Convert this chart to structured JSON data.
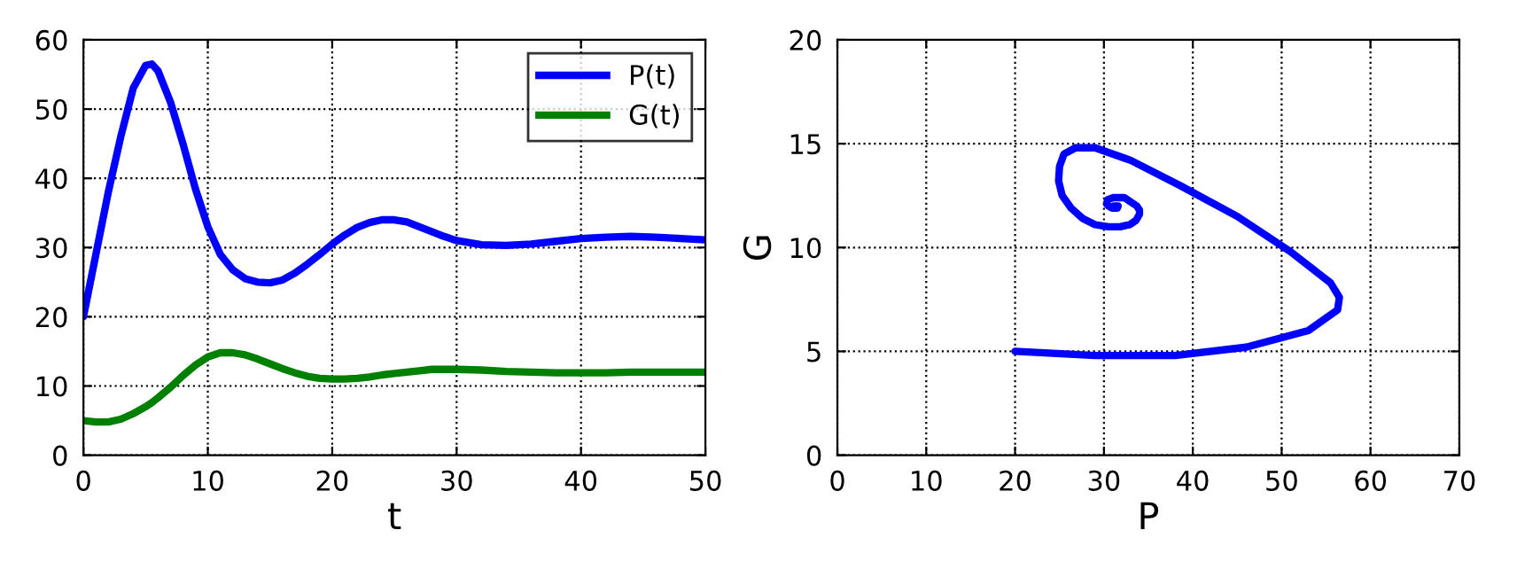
{
  "chart_data": [
    {
      "type": "line",
      "xlabel": "t",
      "x": [
        0,
        1,
        2,
        3,
        4,
        5,
        5.5,
        6,
        7,
        8,
        9,
        10,
        11,
        12,
        13,
        14,
        15,
        16,
        17,
        18,
        19,
        20,
        21,
        22,
        23,
        24,
        25,
        26,
        27,
        28,
        29,
        30,
        32,
        34,
        36,
        38,
        40,
        42,
        44,
        46,
        48,
        50
      ],
      "series": [
        {
          "name": "P(t)",
          "color": "#0000ff",
          "values": [
            20,
            29,
            38,
            46,
            53,
            56.3,
            56.5,
            55.5,
            51,
            45,
            38.5,
            33,
            29,
            26.8,
            25.5,
            25,
            24.9,
            25.3,
            26.3,
            27.6,
            29,
            30.5,
            31.8,
            32.9,
            33.6,
            34,
            34,
            33.7,
            33,
            32.3,
            31.6,
            31,
            30.4,
            30.3,
            30.5,
            30.9,
            31.3,
            31.5,
            31.6,
            31.5,
            31.3,
            31.1
          ]
        },
        {
          "name": "G(t)",
          "color": "#008000",
          "values": [
            5,
            4.8,
            4.8,
            5.2,
            6,
            7,
            7.6,
            8.3,
            9.8,
            11.5,
            13,
            14.2,
            14.8,
            14.8,
            14.5,
            13.9,
            13.2,
            12.5,
            11.9,
            11.4,
            11.1,
            11,
            11,
            11.1,
            11.3,
            11.6,
            11.8,
            12,
            12.2,
            12.4,
            12.4,
            12.4,
            12.3,
            12.1,
            12,
            11.9,
            11.9,
            11.9,
            12,
            12,
            12,
            12
          ]
        }
      ],
      "xlim": [
        0,
        50
      ],
      "ylim": [
        0,
        60
      ],
      "xticks": [
        0,
        10,
        20,
        30,
        40,
        50
      ],
      "yticks": [
        0,
        10,
        20,
        30,
        40,
        50,
        60
      ],
      "grid": true,
      "legend": "top right",
      "line_style": "solid"
    },
    {
      "type": "line",
      "xlabel": "P",
      "ylabel": "G",
      "series": [
        {
          "color": "#0000ff",
          "x": [
            20,
            29,
            38,
            46,
            53,
            56.3,
            56.5,
            55.5,
            51,
            45,
            38.5,
            33,
            29,
            26.8,
            25.5,
            25,
            24.9,
            25.3,
            26.3,
            27.6,
            29,
            30.5,
            31.8,
            32.9,
            33.6,
            34,
            34,
            33.7,
            33,
            32.3,
            31.6,
            31,
            30.4,
            30.3,
            30.5,
            30.9,
            31.3,
            31.5,
            31.6,
            31.5,
            31.3,
            31.1
          ],
          "values": [
            5,
            4.8,
            4.8,
            5.2,
            6,
            7,
            7.6,
            8.3,
            9.8,
            11.5,
            13,
            14.2,
            14.8,
            14.8,
            14.5,
            13.9,
            13.2,
            12.5,
            11.9,
            11.4,
            11.1,
            11,
            11,
            11.1,
            11.3,
            11.6,
            11.8,
            12,
            12.2,
            12.4,
            12.4,
            12.4,
            12.3,
            12.1,
            12,
            11.9,
            11.9,
            11.9,
            12,
            12,
            12,
            12
          ]
        }
      ],
      "xlim": [
        0,
        70
      ],
      "ylim": [
        0,
        20
      ],
      "xticks": [
        0,
        10,
        20,
        30,
        40,
        50,
        60,
        70
      ],
      "yticks": [
        0,
        5,
        10,
        15,
        20
      ],
      "grid": true,
      "line_style": "solid"
    }
  ]
}
